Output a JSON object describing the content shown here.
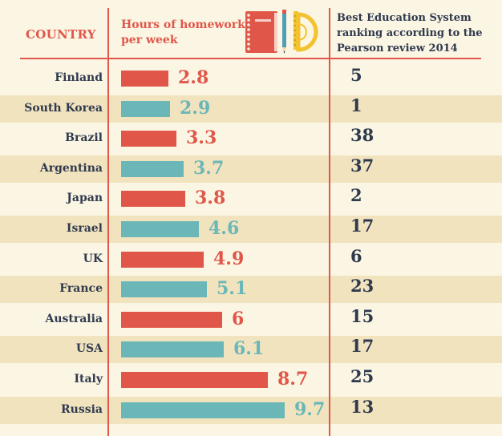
{
  "chart_data": {
    "type": "table",
    "headers": {
      "country": "COUNTRY",
      "hours": "Hours of homework per week",
      "ranking": "Best Education System ranking according to the Pearson review 2014"
    },
    "rows": [
      {
        "country": "Finland",
        "hours": 2.8,
        "hours_label": "2.8",
        "rank": "5"
      },
      {
        "country": "South Korea",
        "hours": 2.9,
        "hours_label": "2.9",
        "rank": "1"
      },
      {
        "country": "Brazil",
        "hours": 3.3,
        "hours_label": "3.3",
        "rank": "38"
      },
      {
        "country": "Argentina",
        "hours": 3.7,
        "hours_label": "3.7",
        "rank": "37"
      },
      {
        "country": "Japan",
        "hours": 3.8,
        "hours_label": "3.8",
        "rank": "2"
      },
      {
        "country": "Israel",
        "hours": 4.6,
        "hours_label": "4.6",
        "rank": "17"
      },
      {
        "country": "UK",
        "hours": 4.9,
        "hours_label": "4.9",
        "rank": "6"
      },
      {
        "country": "France",
        "hours": 5.1,
        "hours_label": "5.1",
        "rank": "23"
      },
      {
        "country": "Australia",
        "hours": 6,
        "hours_label": "6",
        "rank": "15"
      },
      {
        "country": "USA",
        "hours": 6.1,
        "hours_label": "6.1",
        "rank": "17"
      },
      {
        "country": "Italy",
        "hours": 8.7,
        "hours_label": "8.7",
        "rank": "25"
      },
      {
        "country": "Russia",
        "hours": 9.7,
        "hours_label": "9.7",
        "rank": "13"
      }
    ],
    "colors": {
      "odd": "#e0574a",
      "even": "#6bb7b7",
      "band": "#f2e3bf",
      "line": "#e0574a",
      "text": "#2f3a4e"
    },
    "icons": [
      "notebook-icon",
      "pencil-icon",
      "ruler-icon",
      "protractor-icon"
    ]
  }
}
